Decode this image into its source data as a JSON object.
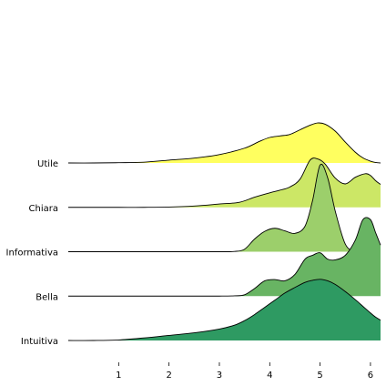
{
  "chart_data": {
    "type": "area",
    "subtype": "ridgeline",
    "title": "",
    "xlabel": "",
    "ylabel": "",
    "xlim": [
      0,
      6.2
    ],
    "xticks": [
      1,
      2,
      3,
      4,
      5,
      6
    ],
    "grid": false,
    "legend": "none",
    "series": [
      {
        "name": "Utile",
        "color": "#ffff5f",
        "x": [
          0,
          0.5,
          1.0,
          1.5,
          2.0,
          2.5,
          3.0,
          3.5,
          3.8,
          4.0,
          4.2,
          4.4,
          4.6,
          4.8,
          4.95,
          5.1,
          5.3,
          5.5,
          5.7,
          5.85,
          6.0,
          6.1,
          6.2
        ],
        "y": [
          0.0,
          0.0,
          0.01,
          0.03,
          0.11,
          0.19,
          0.33,
          0.58,
          0.85,
          1.0,
          1.06,
          1.12,
          1.3,
          1.48,
          1.57,
          1.52,
          1.25,
          0.82,
          0.42,
          0.2,
          0.07,
          0.02,
          0.0
        ]
      },
      {
        "name": "Chiara",
        "color": "#cce766",
        "x": [
          0,
          0.5,
          1.0,
          1.5,
          2.0,
          2.5,
          3.0,
          3.4,
          3.7,
          4.0,
          4.2,
          4.4,
          4.6,
          4.8,
          4.95,
          5.1,
          5.3,
          5.5,
          5.7,
          5.9,
          6.0,
          6.1,
          6.2
        ],
        "y": [
          0.0,
          0.0,
          0.0,
          0.0,
          0.01,
          0.05,
          0.13,
          0.2,
          0.4,
          0.57,
          0.67,
          0.8,
          1.1,
          1.85,
          1.9,
          1.7,
          1.15,
          0.92,
          1.18,
          1.32,
          1.25,
          1.05,
          0.9
        ]
      },
      {
        "name": "Informativa",
        "color": "#9ccf6b",
        "x": [
          0,
          0.5,
          1.0,
          1.5,
          2.0,
          2.5,
          3.0,
          3.3,
          3.5,
          3.7,
          3.9,
          4.1,
          4.3,
          4.5,
          4.7,
          4.85,
          5.0,
          5.15,
          5.3,
          5.5,
          5.7,
          5.85,
          6.0,
          6.1,
          6.2
        ],
        "y": [
          0.0,
          0.0,
          0.0,
          0.0,
          0.0,
          0.0,
          0.0,
          0.01,
          0.1,
          0.5,
          0.8,
          0.92,
          0.82,
          0.72,
          1.0,
          2.0,
          3.4,
          2.9,
          1.6,
          0.3,
          0.0,
          0.0,
          0.0,
          0.0,
          0.0
        ]
      },
      {
        "name": "Bella",
        "color": "#68b463",
        "x": [
          0,
          0.5,
          1.0,
          1.5,
          2.0,
          2.5,
          3.0,
          3.3,
          3.5,
          3.7,
          3.9,
          4.1,
          4.3,
          4.5,
          4.7,
          4.85,
          5.0,
          5.15,
          5.3,
          5.5,
          5.7,
          5.85,
          6.0,
          6.1,
          6.2
        ],
        "y": [
          0.0,
          0.0,
          0.0,
          0.0,
          0.0,
          0.0,
          0.0,
          0.01,
          0.05,
          0.3,
          0.6,
          0.65,
          0.6,
          0.85,
          1.45,
          1.6,
          1.7,
          1.45,
          1.42,
          1.6,
          2.2,
          3.0,
          3.0,
          2.5,
          2.0
        ]
      },
      {
        "name": "Intuitiva",
        "color": "#2e9a62",
        "x": [
          0,
          0.5,
          1.0,
          1.5,
          2.0,
          2.5,
          3.0,
          3.3,
          3.5,
          3.7,
          3.9,
          4.1,
          4.3,
          4.5,
          4.7,
          4.85,
          5.0,
          5.15,
          5.3,
          5.5,
          5.7,
          5.85,
          6.0,
          6.1,
          6.2
        ],
        "y": [
          0.0,
          0.0,
          0.02,
          0.1,
          0.2,
          0.3,
          0.45,
          0.6,
          0.78,
          1.02,
          1.3,
          1.58,
          1.86,
          2.08,
          2.28,
          2.36,
          2.4,
          2.34,
          2.2,
          1.92,
          1.6,
          1.34,
          1.08,
          0.92,
          0.8
        ]
      }
    ]
  }
}
